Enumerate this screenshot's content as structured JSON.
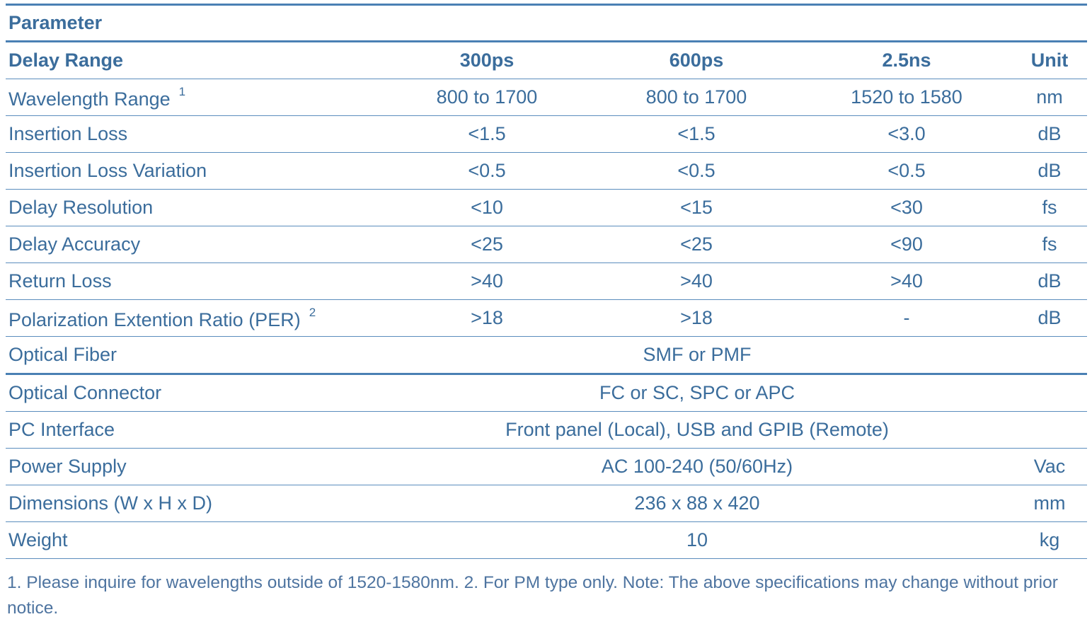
{
  "table": {
    "title": "Parameter",
    "header": [
      "Delay Range",
      "300ps",
      "600ps",
      "2.5ns",
      "Unit"
    ],
    "rows": [
      {
        "parameter": "Wavelength Range",
        "note": "1",
        "values": [
          "800 to 1700",
          "800 to 1700",
          "1520 to 1580"
        ],
        "unit": "nm"
      },
      {
        "parameter": "Insertion Loss",
        "values": [
          "<1.5",
          "<1.5",
          "<3.0"
        ],
        "unit": "dB"
      },
      {
        "parameter": "Insertion Loss Variation",
        "values": [
          "<0.5",
          "<0.5",
          "<0.5"
        ],
        "unit": "dB"
      },
      {
        "parameter": "Delay Resolution",
        "values": [
          "<10",
          "<15",
          "<30"
        ],
        "unit": "fs"
      },
      {
        "parameter": "Delay Accuracy",
        "values": [
          "<25",
          "<25",
          "<90"
        ],
        "unit": "fs"
      },
      {
        "parameter": "Return Loss",
        "values": [
          ">40",
          ">40",
          ">40"
        ],
        "unit": "dB"
      },
      {
        "parameter": "Polarization Extention Ratio (PER)",
        "note": "2",
        "values": [
          ">18",
          ">18",
          "-"
        ],
        "unit": "dB"
      },
      {
        "parameter": "Optical Fiber",
        "values": [
          "SMF or PMF"
        ]
      },
      {
        "parameter": "Optical Connector",
        "values": [
          "FC or SC, SPC or APC"
        ]
      },
      {
        "parameter": "PC Interface",
        "values": [
          "Front panel (Local), USB and GPIB (Remote)"
        ]
      },
      {
        "parameter": "Power Supply",
        "values": [
          "AC 100-240 (50/60Hz)"
        ],
        "unit": "Vac"
      },
      {
        "parameter": "Dimensions (W x H x D)",
        "values": [
          "236 x 88 x 420"
        ],
        "unit": "mm"
      },
      {
        "parameter": "Weight",
        "values": [
          "10"
        ],
        "unit": "kg"
      }
    ]
  },
  "footnote": "1. Please inquire for wavelengths outside of 1520-1580nm. 2. For PM type only. Note: The above specifications may change without prior notice."
}
